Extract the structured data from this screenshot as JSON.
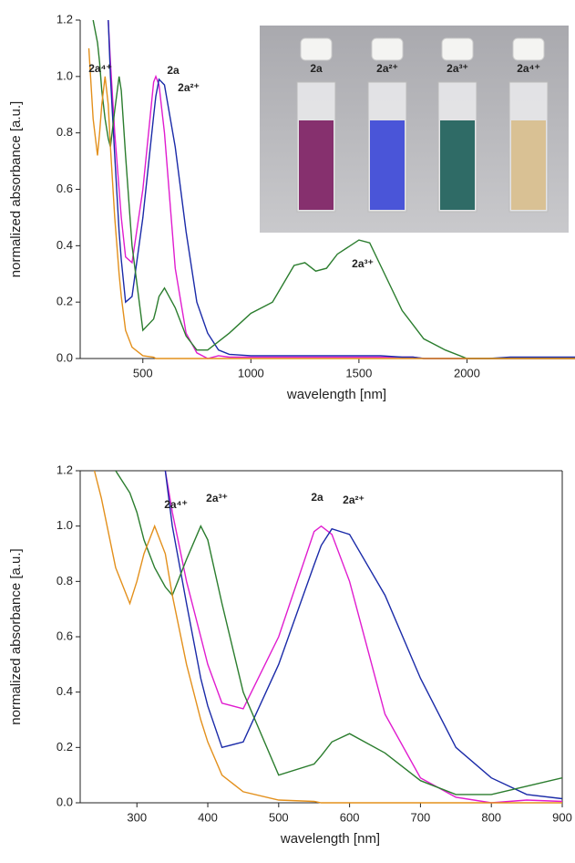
{
  "chart_data": [
    {
      "type": "line",
      "xlabel": "wavelength [nm]",
      "ylabel": "normalized absorbance [a.u.]",
      "x": [
        250,
        270,
        290,
        300,
        310,
        325,
        340,
        350,
        370,
        390,
        400,
        420,
        450,
        500,
        550,
        560,
        575,
        600,
        650,
        700,
        750,
        800,
        850,
        900,
        1000,
        1100,
        1200,
        1250,
        1300,
        1350,
        1400,
        1500,
        1550,
        1600,
        1700,
        1750,
        1800,
        1900,
        2000,
        2100,
        2200,
        2300,
        2400,
        2500
      ],
      "xlim": [
        210,
        2500
      ],
      "xticks": [
        500,
        1000,
        1500,
        2000
      ],
      "ylim": [
        0,
        1.2
      ],
      "yticks": [
        {
          "value": 0,
          "label": "0.0"
        },
        0.2,
        0.4,
        0.6,
        0.8,
        {
          "value": 1,
          "label": "1.0"
        },
        1.2
      ],
      "series": [
        {
          "name": "2a",
          "color": "#e01ccf",
          "values": [
            null,
            null,
            null,
            null,
            null,
            null,
            1.2,
            1.05,
            0.8,
            0.6,
            0.5,
            0.36,
            0.34,
            0.6,
            0.98,
            1,
            0.97,
            0.8,
            0.32,
            0.09,
            0.02,
            0,
            0.01,
            0.005,
            0.005,
            0.005,
            0.005,
            0.005,
            0.005,
            0.005,
            0.005,
            0.005,
            0.005,
            0.005,
            0.005,
            0.005,
            0,
            0,
            0,
            0,
            0,
            0,
            0,
            0
          ]
        },
        {
          "name": "2a²⁺",
          "color": "#1a2aa8",
          "values": [
            null,
            null,
            null,
            null,
            null,
            null,
            1.2,
            1,
            0.72,
            0.45,
            0.35,
            0.2,
            0.22,
            0.5,
            0.86,
            0.93,
            0.99,
            0.97,
            0.75,
            0.45,
            0.2,
            0.09,
            0.03,
            0.015,
            0.01,
            0.01,
            0.01,
            0.01,
            0.01,
            0.01,
            0.01,
            0.01,
            0.01,
            0.01,
            0.005,
            0.005,
            0,
            0,
            0,
            0,
            0.005,
            0.005,
            0.005,
            0.005
          ]
        },
        {
          "name": "2a³⁺",
          "color": "#2b7d2e",
          "values": [
            null,
            1.2,
            1.12,
            1.05,
            0.95,
            0.85,
            0.78,
            0.75,
            0.88,
            1,
            0.95,
            0.72,
            0.4,
            0.1,
            0.14,
            0.17,
            0.22,
            0.25,
            0.18,
            0.08,
            0.03,
            0.03,
            0.06,
            0.09,
            0.16,
            0.2,
            0.33,
            0.34,
            0.31,
            0.32,
            0.37,
            0.42,
            0.41,
            0.33,
            0.17,
            0.12,
            0.07,
            0.03,
            0,
            0,
            0,
            0,
            0,
            0
          ]
        },
        {
          "name": "2a⁴⁺",
          "color": "#e3901c",
          "values": [
            1.1,
            0.85,
            0.72,
            0.8,
            0.9,
            1,
            0.9,
            0.75,
            0.5,
            0.3,
            0.22,
            0.1,
            0.04,
            0.01,
            0.005,
            0,
            0,
            0,
            0,
            0,
            0,
            0,
            0,
            0,
            0,
            0,
            0,
            0,
            0,
            0,
            0,
            0,
            0,
            0,
            0,
            0,
            0,
            0,
            0,
            0,
            0,
            0,
            0,
            0
          ]
        }
      ]
    },
    {
      "type": "line",
      "xlabel": "wavelength [nm]",
      "ylabel": "normalized absorbance [a.u.]",
      "x": [
        240,
        250,
        270,
        290,
        300,
        310,
        325,
        340,
        350,
        370,
        390,
        400,
        420,
        450,
        500,
        550,
        560,
        575,
        600,
        650,
        700,
        750,
        800,
        850,
        900
      ],
      "xlim": [
        220,
        900
      ],
      "xticks": [
        300,
        400,
        500,
        600,
        700,
        800,
        900
      ],
      "ylim": [
        0,
        1.2
      ],
      "yticks": [
        {
          "value": 0,
          "label": "0.0"
        },
        0.2,
        0.4,
        0.6,
        0.8,
        {
          "value": 1,
          "label": "1.0"
        },
        1.2
      ],
      "series": [
        {
          "name": "2a",
          "color": "#e01ccf",
          "values": [
            null,
            null,
            null,
            null,
            null,
            null,
            null,
            1.2,
            1.05,
            0.8,
            0.6,
            0.5,
            0.36,
            0.34,
            0.6,
            0.98,
            1,
            0.97,
            0.8,
            0.32,
            0.09,
            0.02,
            0,
            0.01,
            0.005
          ]
        },
        {
          "name": "2a²⁺",
          "color": "#1a2aa8",
          "values": [
            null,
            null,
            null,
            null,
            null,
            null,
            null,
            1.2,
            1,
            0.72,
            0.45,
            0.35,
            0.2,
            0.22,
            0.5,
            0.86,
            0.93,
            0.99,
            0.97,
            0.75,
            0.45,
            0.2,
            0.09,
            0.03,
            0.015
          ]
        },
        {
          "name": "2a³⁺",
          "color": "#2b7d2e",
          "values": [
            null,
            null,
            1.2,
            1.12,
            1.05,
            0.95,
            0.85,
            0.78,
            0.75,
            0.88,
            1,
            0.95,
            0.72,
            0.4,
            0.1,
            0.14,
            0.17,
            0.22,
            0.25,
            0.18,
            0.08,
            0.03,
            0.03,
            0.06,
            0.09
          ]
        },
        {
          "name": "2a⁴⁺",
          "color": "#e3901c",
          "values": [
            1.2,
            1.1,
            0.85,
            0.72,
            0.8,
            0.9,
            1,
            0.9,
            0.75,
            0.5,
            0.3,
            0.22,
            0.1,
            0.04,
            0.01,
            0.005,
            0,
            0,
            0,
            0,
            0,
            0,
            0,
            0,
            0
          ]
        }
      ]
    }
  ]
}
